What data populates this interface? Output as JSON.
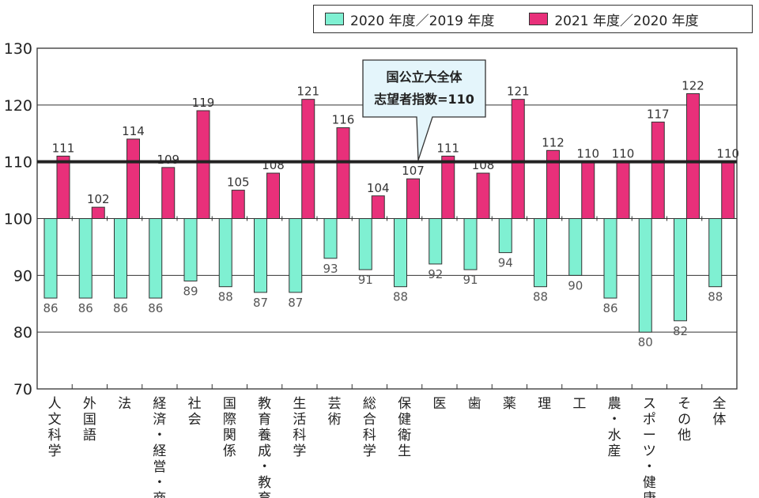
{
  "colors": {
    "series1": "#7ff0d2",
    "series2": "#e8307a",
    "reference_line": "#222222"
  },
  "chart_data": {
    "type": "bar",
    "categories": [
      "人文科学",
      "外国語",
      "法",
      "経済・経営・商",
      "社会",
      "国際関係",
      "教育養成・教育",
      "生活科学",
      "芸術",
      "総合科学",
      "保健衛生",
      "医",
      "歯",
      "薬",
      "理",
      "工",
      "農・水産",
      "スポーツ・健康",
      "その他",
      "全体"
    ],
    "series": [
      {
        "name": "2020 年度／2019 年度",
        "values": [
          86,
          86,
          86,
          86,
          89,
          88,
          87,
          87,
          93,
          91,
          88,
          92,
          91,
          94,
          88,
          90,
          86,
          80,
          82,
          88
        ]
      },
      {
        "name": "2021 年度／2020 年度",
        "values": [
          111,
          102,
          114,
          109,
          119,
          105,
          108,
          121,
          116,
          104,
          107,
          111,
          108,
          121,
          112,
          110,
          110,
          117,
          122,
          110
        ]
      }
    ],
    "baseline": 100,
    "reference_line": 110,
    "ylim": [
      70,
      130
    ],
    "yticks": [
      "70",
      "80",
      "90",
      "100",
      "110",
      "120",
      "130"
    ],
    "grid": true,
    "legend_position": "top-right",
    "annotation": {
      "line1": "国公立大全体",
      "line2": "志望者指数=110"
    }
  }
}
